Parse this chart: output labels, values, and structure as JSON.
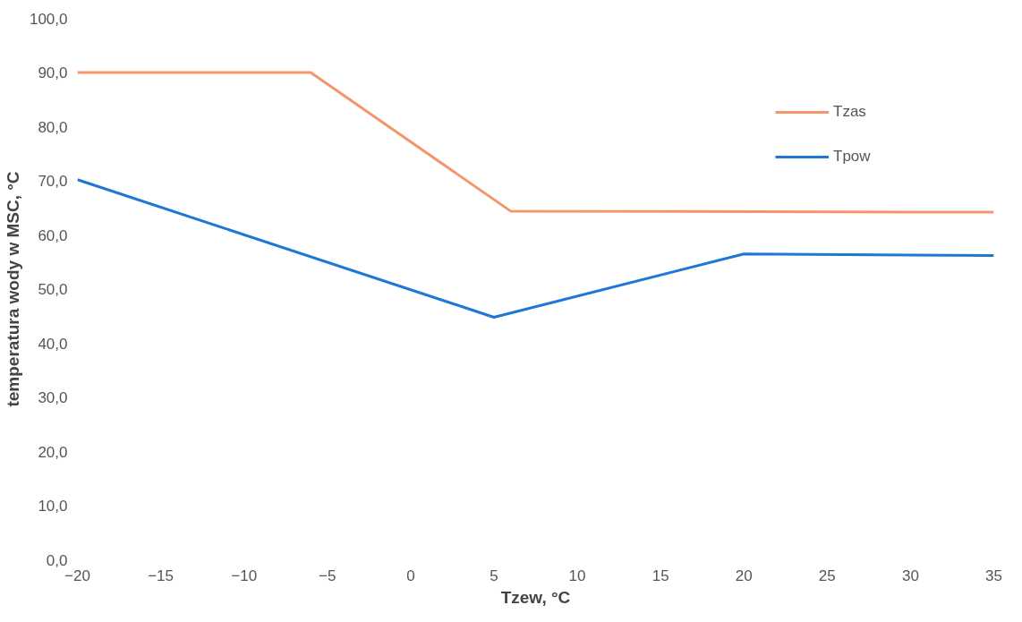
{
  "chart_data": {
    "type": "line",
    "xlabel": "Tzew, °C",
    "ylabel": "temperatura wody w MSC, °C",
    "series": [
      {
        "name": "Tzas",
        "color": "#f4956a",
        "x": [
          -20,
          -6,
          6,
          35
        ],
        "values": [
          90,
          90,
          64.4,
          64.2
        ]
      },
      {
        "name": "Tpow",
        "color": "#1f77d4",
        "x": [
          -20,
          5,
          20,
          35
        ],
        "values": [
          70.2,
          44.8,
          56.5,
          56.2
        ]
      }
    ],
    "xlim": [
      -20,
      35
    ],
    "xticks": [
      -20,
      -15,
      -10,
      -5,
      0,
      5,
      10,
      15,
      20,
      25,
      30,
      35
    ],
    "ylim": [
      0,
      100
    ],
    "yticks": [
      {
        "value": 0,
        "label": "0,0"
      },
      {
        "value": 10,
        "label": "10,0"
      },
      {
        "value": 20,
        "label": "20,0"
      },
      {
        "value": 30,
        "label": "30,0"
      },
      {
        "value": 40,
        "label": "40,0"
      },
      {
        "value": 50,
        "label": "50,0"
      },
      {
        "value": 60,
        "label": "60,0"
      },
      {
        "value": 70,
        "label": "70,0"
      },
      {
        "value": 80,
        "label": "80,0"
      },
      {
        "value": 90,
        "label": "90,0"
      },
      {
        "value": 100,
        "label": "100,0"
      }
    ],
    "grid": false,
    "legend": "top right"
  }
}
